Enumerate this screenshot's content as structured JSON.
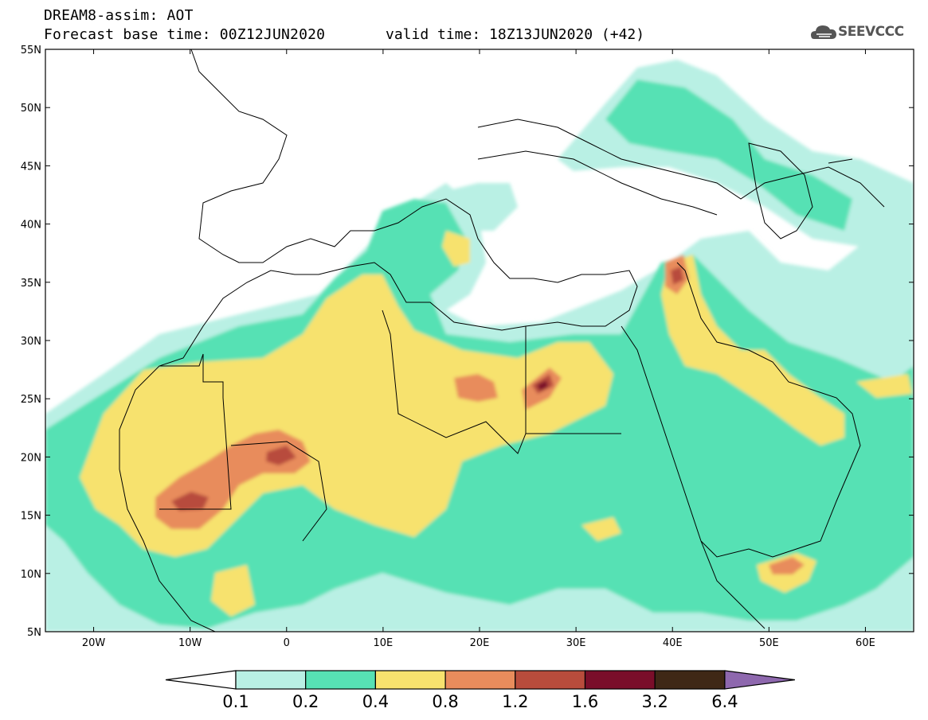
{
  "header": {
    "title_line1": "DREAM8-assim: AOT",
    "title_line2": "Forecast base time: 00Z12JUN2020",
    "valid_time": "valid time: 18Z13JUN2020 (+42)",
    "logo_text": "SEEVCCC"
  },
  "map": {
    "lat_labels": [
      "55N",
      "50N",
      "45N",
      "40N",
      "35N",
      "30N",
      "25N",
      "20N",
      "15N",
      "10N",
      "5N"
    ],
    "lon_labels": [
      "20W",
      "10W",
      "0",
      "10E",
      "20E",
      "30E",
      "40E",
      "50E",
      "60E"
    ],
    "lat_range": [
      5,
      55
    ],
    "lon_range": [
      -25,
      65
    ]
  },
  "colorbar": {
    "levels": [
      "0.1",
      "0.2",
      "0.4",
      "0.8",
      "1.2",
      "1.6",
      "3.2",
      "6.4"
    ],
    "colors": [
      "#ffffff",
      "#b9f0e4",
      "#57e1b4",
      "#f7e26e",
      "#e88c5c",
      "#b84c3c",
      "#7a0e2a",
      "#3f2816",
      "#8e68ae"
    ]
  }
}
